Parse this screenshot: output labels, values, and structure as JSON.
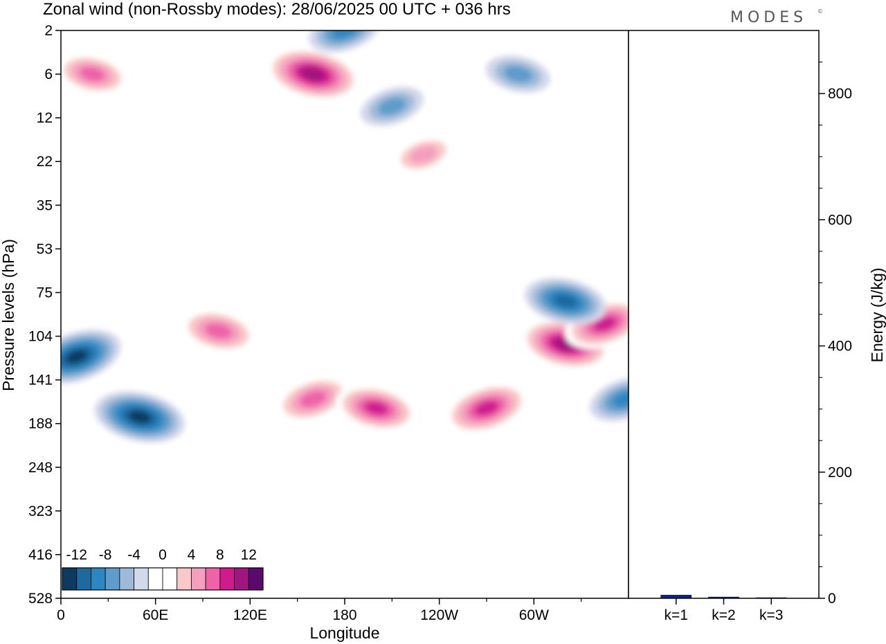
{
  "title": "Zonal wind (non-Rossby modes):  28/06/2025  00 UTC  + 036 hrs",
  "logo": "MODES",
  "logo_mark": "©",
  "chart_data": [
    {
      "type": "heatmap",
      "title": "Zonal wind (non-Rossby modes):  28/06/2025  00 UTC  + 036 hrs",
      "xlabel": "Longitude",
      "ylabel": "Pressure levels (hPa)",
      "x_ticks": [
        "0",
        "60E",
        "120E",
        "180",
        "120W",
        "60W"
      ],
      "x_range_deg": [
        0,
        360
      ],
      "y_ticks": [
        "2",
        "6",
        "12",
        "22",
        "35",
        "53",
        "75",
        "104",
        "141",
        "188",
        "248",
        "323",
        "416",
        "528"
      ],
      "colorbar": {
        "labels": [
          "-12",
          "-8",
          "-4",
          "0",
          "4",
          "8",
          "12"
        ],
        "levels": [
          -14,
          -12,
          -10,
          -8,
          -6,
          -4,
          -2,
          2,
          4,
          6,
          8,
          10,
          12,
          14
        ],
        "colors": [
          "#0c3b5e",
          "#1d69a0",
          "#2e86c1",
          "#5e9ccb",
          "#9fbad9",
          "#d3d8ea",
          "#ffffff",
          "#ffffff",
          "#f9c8c8",
          "#f59fbe",
          "#ee63a8",
          "#cf1b8e",
          "#a0157f",
          "#5a0a6e"
        ]
      },
      "features": [
        {
          "lon": 160,
          "level": "6",
          "value": 13
        },
        {
          "lon": 180,
          "level": "2",
          "value": -8
        },
        {
          "lon": 20,
          "level": "6",
          "value": 8
        },
        {
          "lon": 210,
          "level": "10",
          "value": -6
        },
        {
          "lon": 290,
          "level": "6",
          "value": -6
        },
        {
          "lon": 10,
          "level": "120",
          "value": -12
        },
        {
          "lon": 50,
          "level": "180",
          "value": -12
        },
        {
          "lon": 160,
          "level": "160",
          "value": 9
        },
        {
          "lon": 200,
          "level": "170",
          "value": 10
        },
        {
          "lon": 270,
          "level": "170",
          "value": 11
        },
        {
          "lon": 320,
          "level": "110",
          "value": 12
        },
        {
          "lon": 345,
          "level": "95",
          "value": 10
        },
        {
          "lon": 320,
          "level": "80",
          "value": -10
        },
        {
          "lon": 358,
          "level": "160",
          "value": -8
        },
        {
          "lon": 100,
          "level": "100",
          "value": 9
        },
        {
          "lon": 230,
          "level": "20",
          "value": 6
        }
      ]
    },
    {
      "type": "bar",
      "categories": [
        "k=1",
        "k=2",
        "k=3"
      ],
      "values": [
        5,
        2,
        1
      ],
      "ylabel": "Energy (J/kg)",
      "ylim": [
        0,
        900
      ],
      "y_ticks": [
        0,
        200,
        400,
        600,
        800
      ],
      "bar_color": "#0a1f8f"
    }
  ]
}
